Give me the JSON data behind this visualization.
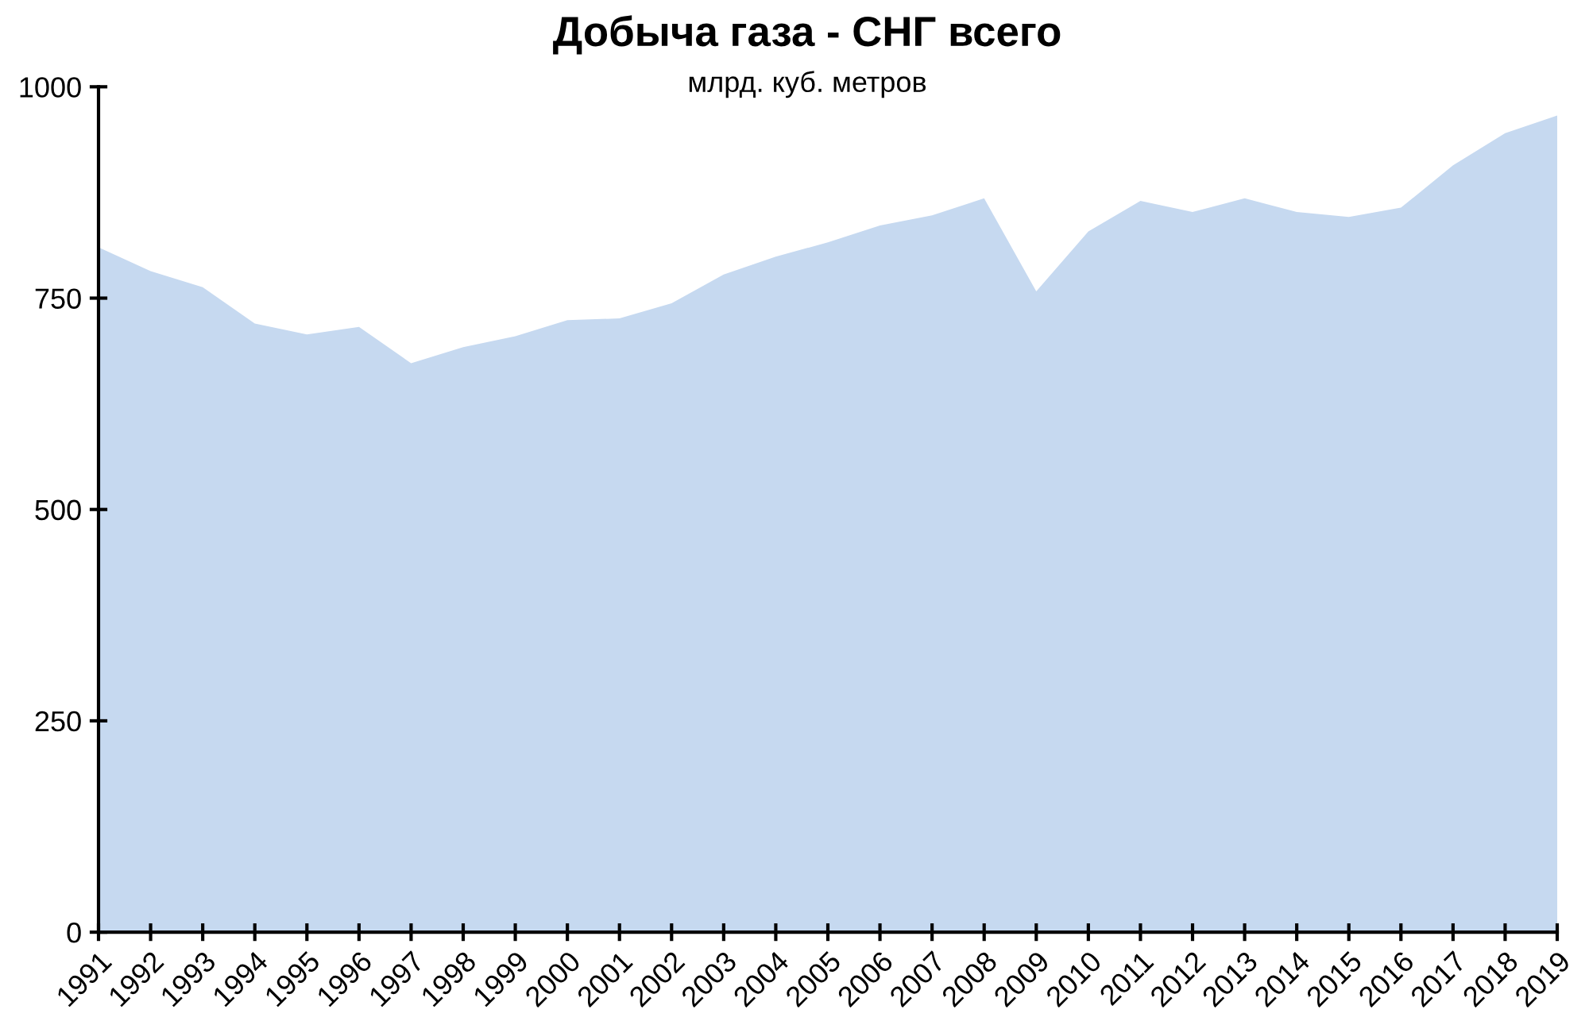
{
  "chart_data": {
    "type": "area",
    "title": "Добыча газа - СНГ всего",
    "subtitle": "млрд. куб. метров",
    "categories": [
      "1991",
      "1992",
      "1993",
      "1994",
      "1995",
      "1996",
      "1997",
      "1998",
      "1999",
      "2000",
      "2001",
      "2002",
      "2003",
      "2004",
      "2005",
      "2006",
      "2007",
      "2008",
      "2009",
      "2010",
      "2011",
      "2012",
      "2013",
      "2014",
      "2015",
      "2016",
      "2017",
      "2018",
      "2019"
    ],
    "series": [
      {
        "color": "#c6d9f0",
        "values": [
          810,
          782,
          763,
          720,
          707,
          716,
          673,
          692,
          705,
          724,
          726,
          744,
          778,
          799,
          816,
          836,
          848,
          868,
          758,
          829,
          865,
          852,
          868,
          852,
          846,
          857,
          907,
          945,
          966
        ]
      }
    ],
    "ylim": [
      0,
      1000
    ],
    "yticks": [
      0,
      250,
      500,
      750,
      1000
    ],
    "grid": false,
    "legend": false
  }
}
